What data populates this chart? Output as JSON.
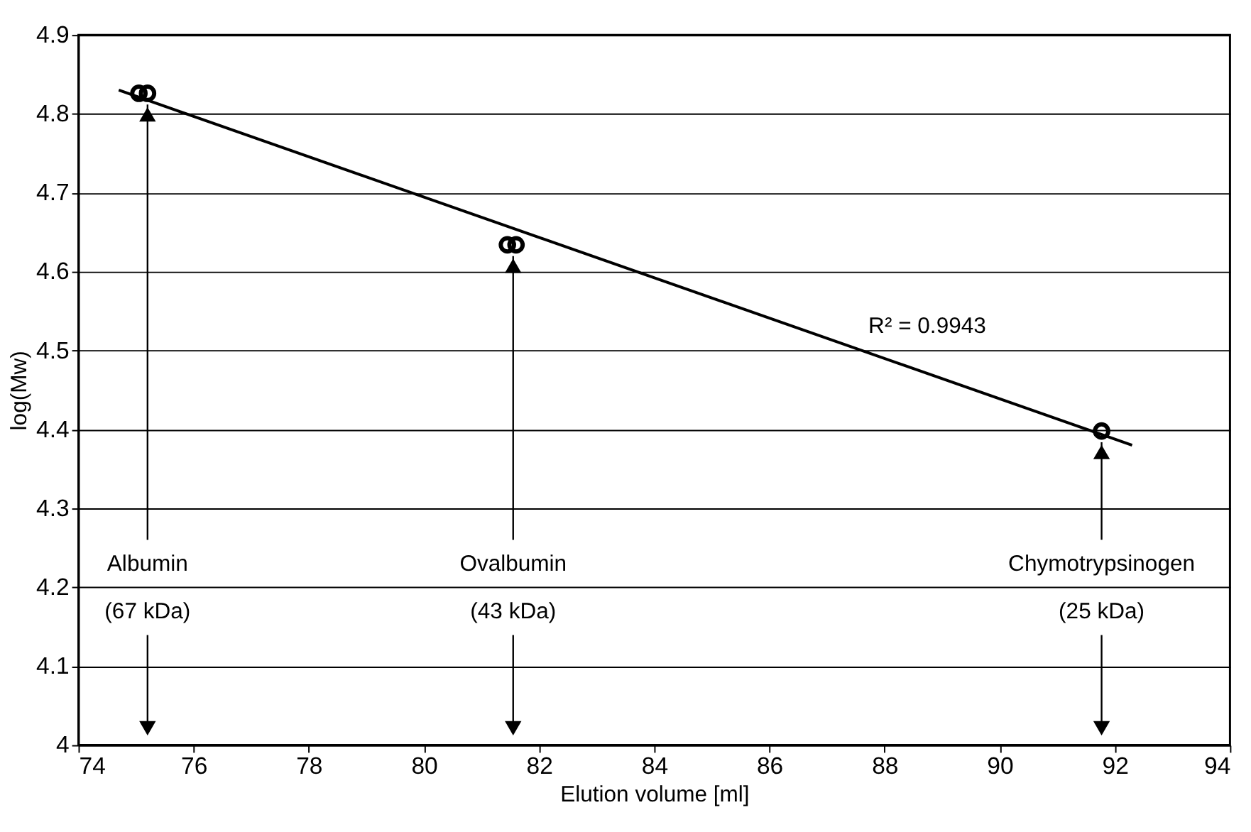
{
  "chart_data": {
    "type": "scatter",
    "xlabel": "Elution volume [ml]",
    "ylabel": "log(Mw)",
    "xlim": [
      74,
      94
    ],
    "xticks": [
      74,
      76,
      78,
      80,
      82,
      84,
      86,
      88,
      90,
      92,
      94
    ],
    "ylim": [
      4,
      4.9
    ],
    "yticks": [
      4,
      4.1,
      4.2,
      4.3,
      4.4,
      4.5,
      4.6,
      4.7,
      4.8,
      4.9
    ],
    "grid": "y",
    "series": [
      {
        "color": "#000000",
        "marker": "circle",
        "x": [
          75.05,
          75.2,
          81.45,
          81.6,
          91.77
        ],
        "values": [
          4.826,
          4.826,
          4.634,
          4.634,
          4.398
        ]
      },
      {
        "type": "line",
        "color": "#000000",
        "marker": "none",
        "x": [
          74.7,
          92.3
        ],
        "values": [
          4.83,
          4.38
        ]
      }
    ],
    "annotations": [
      "R² = 0.9943",
      {
        "text": "Albumin\n(67 kDa)",
        "x": 75.2,
        "y": 4.826
      },
      {
        "text": "Ovalbumin\n(43 kDa)",
        "x": 81.55,
        "y": 4.634
      },
      {
        "text": "Chymotrypsinogen\n(25 kDa)",
        "x": 91.77,
        "y": 4.398
      }
    ]
  }
}
